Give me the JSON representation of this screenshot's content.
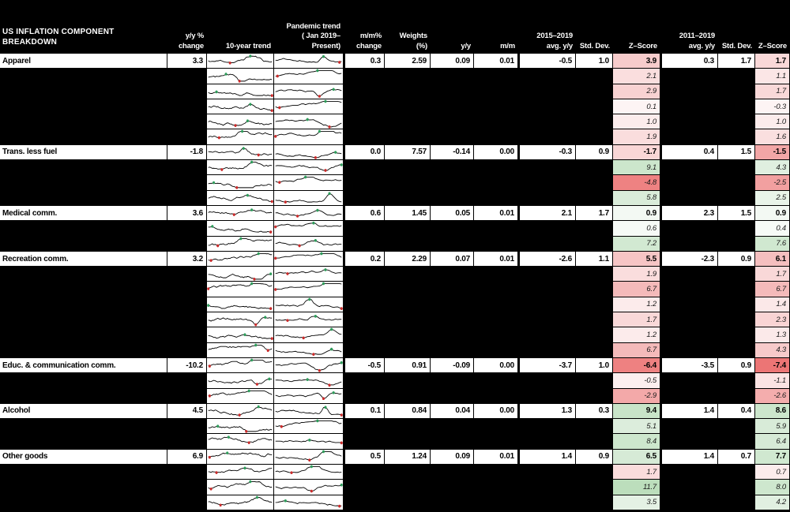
{
  "title": "US INFLATION COMPONENT BREAKDOWN",
  "header": {
    "yy_change": "y/y %\nchange",
    "trend_10yr": "10-year trend",
    "trend_pandemic": "Pandemic trend\n( Jan 2019–Present)",
    "mm_change": "m/m%\nchange",
    "weights": "Weights\n(%)",
    "yy": "y/y",
    "mm": "m/m",
    "avg_2015_2019": "2015–2019\navg. y/y",
    "std_dev_1": "Std. Dev.",
    "z_score_1": "Z–Score",
    "avg_2011_2019": "2011–2019\navg. y/y",
    "std_dev_2": "Std. Dev.",
    "z_score_2": "Z–Score"
  },
  "colors": {
    "background": "#000000",
    "cell_background": "#ffffff",
    "header_text": "#ffffff",
    "sparkline_line": "#000000",
    "marker_low": "#cc2a2a",
    "marker_high": "#2e9e5b",
    "zscore_negative_strong": "#ee8181",
    "zscore_positive_strong": "#bcdebc"
  },
  "chart_data": {
    "type": "table",
    "columns": [
      "Component",
      "y/y % change",
      "10-year trend",
      "Pandemic trend (Jan 2019–Present)",
      "m/m% change",
      "Weights (%)",
      "y/y",
      "m/m",
      "2015–2019 avg. y/y",
      "Std. Dev.",
      "Z-Score",
      "2011–2019 avg. y/y",
      "Std. Dev.",
      "Z-Score"
    ],
    "rows": [
      {
        "name": "Apparel",
        "category": true,
        "yy_change": "3.3",
        "mm_change": "0.3",
        "weights": "2.59",
        "contrib_yy": "0.09",
        "contrib_mm": "0.01",
        "avg_2015_2019": "-0.5",
        "std_2015_2019": "1.0",
        "z_2015_2019": "3.9",
        "z1_bg": "#f7cccc",
        "avg_2011_2019": "0.3",
        "std_2011_2019": "1.7",
        "z_2011_2019": "1.7",
        "z2_bg": "#f9d8d8",
        "seed": 11
      },
      {
        "category": false,
        "z_2015_2019": "2.1",
        "z1_bg": "#fadede",
        "z_2011_2019": "1.1",
        "z2_bg": "#fbe6e6",
        "seed": 12
      },
      {
        "category": false,
        "z_2015_2019": "2.9",
        "z1_bg": "#f8d2d2",
        "z_2011_2019": "1.7",
        "z2_bg": "#f9d8d8",
        "seed": 13
      },
      {
        "category": false,
        "z_2015_2019": "0.1",
        "z1_bg": "#fdf4f4",
        "z_2011_2019": "-0.3",
        "z2_bg": "#fdf4f4",
        "seed": 14
      },
      {
        "category": false,
        "z_2015_2019": "1.0",
        "z1_bg": "#fcecec",
        "z_2011_2019": "1.0",
        "z2_bg": "#fcecec",
        "seed": 15
      },
      {
        "category": false,
        "z_2015_2019": "1.9",
        "z1_bg": "#fadddd",
        "z_2011_2019": "1.6",
        "z2_bg": "#fadfdf",
        "seed": 16
      },
      {
        "name": "Trans. less fuel",
        "category": true,
        "yy_change": "-1.8",
        "mm_change": "0.0",
        "weights": "7.57",
        "contrib_yy": "-0.14",
        "contrib_mm": "0.00",
        "avg_2015_2019": "-0.3",
        "std_2015_2019": "0.9",
        "z_2015_2019": "-1.7",
        "z1_bg": "#f9d6d6",
        "avg_2011_2019": "0.4",
        "std_2011_2019": "1.5",
        "z_2011_2019": "-1.5",
        "z2_bg": "#f2a6a6",
        "seed": 17
      },
      {
        "category": false,
        "z_2015_2019": "9.1",
        "z1_bg": "#cce6cc",
        "z_2011_2019": "4.3",
        "z2_bg": "#e0efe0",
        "seed": 18
      },
      {
        "category": false,
        "z_2015_2019": "-4.8",
        "z1_bg": "#ee8282",
        "z_2011_2019": "-2.5",
        "z2_bg": "#f2a0a0",
        "seed": 19
      },
      {
        "category": false,
        "z_2015_2019": "5.8",
        "z1_bg": "#d9ecd9",
        "z_2011_2019": "2.5",
        "z2_bg": "#e9f4e9",
        "seed": 20
      },
      {
        "name": "Medical comm.",
        "category": true,
        "yy_change": "3.6",
        "mm_change": "0.6",
        "weights": "1.45",
        "contrib_yy": "0.05",
        "contrib_mm": "0.01",
        "avg_2015_2019": "2.1",
        "std_2015_2019": "1.7",
        "z_2015_2019": "0.9",
        "z1_bg": "#f3f9f3",
        "avg_2011_2019": "2.3",
        "std_2011_2019": "1.5",
        "z_2011_2019": "0.9",
        "z2_bg": "#f3f9f3",
        "seed": 21
      },
      {
        "category": false,
        "z_2015_2019": "0.6",
        "z1_bg": "#f6faf6",
        "z_2011_2019": "0.4",
        "z2_bg": "#f7fbf7",
        "seed": 22
      },
      {
        "category": false,
        "z_2015_2019": "7.2",
        "z1_bg": "#d2e9d2",
        "z_2011_2019": "7.6",
        "z2_bg": "#d0e8d0",
        "seed": 23
      },
      {
        "name": "Recreation comm.",
        "category": true,
        "yy_change": "3.2",
        "mm_change": "0.2",
        "weights": "2.29",
        "contrib_yy": "0.07",
        "contrib_mm": "0.01",
        "avg_2015_2019": "-2.6",
        "std_2015_2019": "1.1",
        "z_2015_2019": "5.5",
        "z1_bg": "#f6c5c5",
        "avg_2011_2019": "-2.3",
        "std_2011_2019": "0.9",
        "z_2011_2019": "6.1",
        "z2_bg": "#f5bfbf",
        "seed": 24
      },
      {
        "category": false,
        "z_2015_2019": "1.9",
        "z1_bg": "#fadddd",
        "z_2011_2019": "1.7",
        "z2_bg": "#f9d8d8",
        "seed": 25
      },
      {
        "category": false,
        "z_2015_2019": "6.7",
        "z1_bg": "#f4baba",
        "z_2011_2019": "6.7",
        "z2_bg": "#f4baba",
        "seed": 26
      },
      {
        "category": false,
        "z_2015_2019": "1.2",
        "z1_bg": "#fcebeb",
        "z_2011_2019": "1.4",
        "z2_bg": "#fbe8e8",
        "seed": 27
      },
      {
        "category": false,
        "z_2015_2019": "1.7",
        "z1_bg": "#f9d8d8",
        "z_2011_2019": "2.3",
        "z2_bg": "#f9d4d4",
        "seed": 28
      },
      {
        "category": false,
        "z_2015_2019": "1.2",
        "z1_bg": "#fcebeb",
        "z_2011_2019": "1.3",
        "z2_bg": "#fbe9e9",
        "seed": 29
      },
      {
        "category": false,
        "z_2015_2019": "6.7",
        "z1_bg": "#f4baba",
        "z_2011_2019": "4.3",
        "z2_bg": "#f7caca",
        "seed": 30
      },
      {
        "name": "Educ. & communication comm.",
        "category": true,
        "yy_change": "-10.2",
        "mm_change": "-0.5",
        "weights": "0.91",
        "contrib_yy": "-0.09",
        "contrib_mm": "0.00",
        "avg_2015_2019": "-3.7",
        "std_2015_2019": "1.0",
        "z_2015_2019": "-6.4",
        "z1_bg": "#ee8181",
        "avg_2011_2019": "-3.5",
        "std_2011_2019": "0.9",
        "z_2011_2019": "-7.4",
        "z2_bg": "#ec7575",
        "seed": 31
      },
      {
        "category": false,
        "z_2015_2019": "-0.5",
        "z1_bg": "#fcefef",
        "z_2011_2019": "-1.1",
        "z2_bg": "#fbe3e3",
        "seed": 32
      },
      {
        "category": false,
        "z_2015_2019": "-2.9",
        "z1_bg": "#f3a9a9",
        "z_2011_2019": "-2.6",
        "z2_bg": "#f4adad",
        "seed": 33
      },
      {
        "name": "Alcohol",
        "category": true,
        "yy_change": "4.5",
        "mm_change": "0.1",
        "weights": "0.84",
        "contrib_yy": "0.04",
        "contrib_mm": "0.00",
        "avg_2015_2019": "1.3",
        "std_2015_2019": "0.3",
        "z_2015_2019": "9.4",
        "z1_bg": "#c8e4c8",
        "avg_2011_2019": "1.4",
        "std_2011_2019": "0.4",
        "z_2011_2019": "8.6",
        "z2_bg": "#cce6cc",
        "seed": 34
      },
      {
        "category": false,
        "z_2015_2019": "5.1",
        "z1_bg": "#dceddc",
        "z_2011_2019": "5.9",
        "z2_bg": "#d8ebd8",
        "seed": 35
      },
      {
        "category": false,
        "z_2015_2019": "8.4",
        "z1_bg": "#cde7cd",
        "z_2011_2019": "6.4",
        "z2_bg": "#d6ead6",
        "seed": 36
      },
      {
        "name": "Other goods",
        "category": true,
        "yy_change": "6.9",
        "mm_change": "0.5",
        "weights": "1.24",
        "contrib_yy": "0.09",
        "contrib_mm": "0.01",
        "avg_2015_2019": "1.4",
        "std_2015_2019": "0.9",
        "z_2015_2019": "6.5",
        "z1_bg": "#d6ead6",
        "avg_2011_2019": "1.4",
        "std_2011_2019": "0.7",
        "z_2011_2019": "7.7",
        "z2_bg": "#d0e8d0",
        "seed": 37
      },
      {
        "category": false,
        "z_2015_2019": "1.7",
        "z1_bg": "#fadcdc",
        "z_2011_2019": "0.7",
        "z2_bg": "#fcecec",
        "seed": 38
      },
      {
        "category": false,
        "z_2015_2019": "11.7",
        "z1_bg": "#bcdebc",
        "z_2011_2019": "8.0",
        "z2_bg": "#cee7ce",
        "seed": 39
      },
      {
        "category": false,
        "z_2015_2019": "3.5",
        "z1_bg": "#e4f1e4",
        "z_2011_2019": "4.2",
        "z2_bg": "#e1f0e1",
        "seed": 40
      }
    ]
  }
}
